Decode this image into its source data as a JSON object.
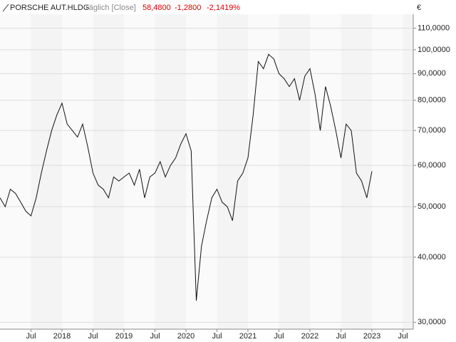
{
  "chart_data": {
    "type": "line",
    "title": "PORSCHE AUT.HLDG",
    "subtitle": "Täglich [Close]",
    "last_price": "58,4800",
    "change": "-1,2800",
    "change_pct": "-2,1419%",
    "currency": "€",
    "x": [
      "2017-01",
      "2017-02",
      "2017-03",
      "2017-04",
      "2017-05",
      "2017-06",
      "2017-07",
      "2017-08",
      "2017-09",
      "2017-10",
      "2017-11",
      "2017-12",
      "2018-01",
      "2018-02",
      "2018-03",
      "2018-04",
      "2018-05",
      "2018-06",
      "2018-07",
      "2018-08",
      "2018-09",
      "2018-10",
      "2018-11",
      "2018-12",
      "2019-01",
      "2019-02",
      "2019-03",
      "2019-04",
      "2019-05",
      "2019-06",
      "2019-07",
      "2019-08",
      "2019-09",
      "2019-10",
      "2019-11",
      "2019-12",
      "2020-01",
      "2020-02",
      "2020-03",
      "2020-04",
      "2020-05",
      "2020-06",
      "2020-07",
      "2020-08",
      "2020-09",
      "2020-10",
      "2020-11",
      "2020-12",
      "2021-01",
      "2021-02",
      "2021-03",
      "2021-04",
      "2021-05",
      "2021-06",
      "2021-07",
      "2021-08",
      "2021-09",
      "2021-10",
      "2021-11",
      "2021-12",
      "2022-01",
      "2022-02",
      "2022-03",
      "2022-04",
      "2022-05",
      "2022-06",
      "2022-07",
      "2022-08",
      "2022-09",
      "2022-10",
      "2022-11",
      "2022-12",
      "2023-01"
    ],
    "series": [
      {
        "name": "PORSCHE AUT.HLDG",
        "color": "#111111",
        "values": [
          52,
          50,
          54,
          53,
          51,
          49,
          48,
          52,
          58,
          64,
          70,
          75,
          79,
          72,
          70,
          68,
          72,
          65,
          58,
          55,
          54,
          52,
          57,
          56,
          57,
          58,
          55,
          59,
          52,
          57,
          58,
          61,
          57,
          60,
          62,
          66,
          69,
          64,
          33,
          42,
          47,
          52,
          54,
          51,
          50,
          47,
          56,
          58,
          62,
          75,
          95,
          92,
          98,
          96,
          90,
          88,
          85,
          88,
          80,
          89,
          92,
          82,
          70,
          85,
          78,
          70,
          62,
          72,
          70,
          58,
          56,
          52,
          58.48
        ]
      }
    ],
    "xlim": [
      "2017-01",
      "2023-09"
    ],
    "xticks": [
      {
        "value": "2017-07",
        "label": "Jul"
      },
      {
        "value": "2018-01",
        "label": "2018"
      },
      {
        "value": "2018-07",
        "label": "Jul"
      },
      {
        "value": "2019-01",
        "label": "2019"
      },
      {
        "value": "2019-07",
        "label": "Jul"
      },
      {
        "value": "2020-01",
        "label": "2020"
      },
      {
        "value": "2020-07",
        "label": "Jul"
      },
      {
        "value": "2021-01",
        "label": "2021"
      },
      {
        "value": "2021-07",
        "label": "Jul"
      },
      {
        "value": "2022-01",
        "label": "2022"
      },
      {
        "value": "2022-07",
        "label": "Jul"
      },
      {
        "value": "2023-01",
        "label": "2023"
      },
      {
        "value": "2023-07",
        "label": "Jul"
      }
    ],
    "ylim": [
      29.1,
      117
    ],
    "yticks": [
      {
        "value": 30,
        "label": "30,0000"
      },
      {
        "value": 40,
        "label": "40,0000"
      },
      {
        "value": 50,
        "label": "50,0000"
      },
      {
        "value": 60,
        "label": "60,0000"
      },
      {
        "value": 70,
        "label": "70,0000"
      },
      {
        "value": 80,
        "label": "80,0000"
      },
      {
        "value": 90,
        "label": "90,0000"
      },
      {
        "value": 100,
        "label": "100,0000"
      },
      {
        "value": 110,
        "label": "110,0000"
      }
    ],
    "y_log": true,
    "grid": true
  }
}
